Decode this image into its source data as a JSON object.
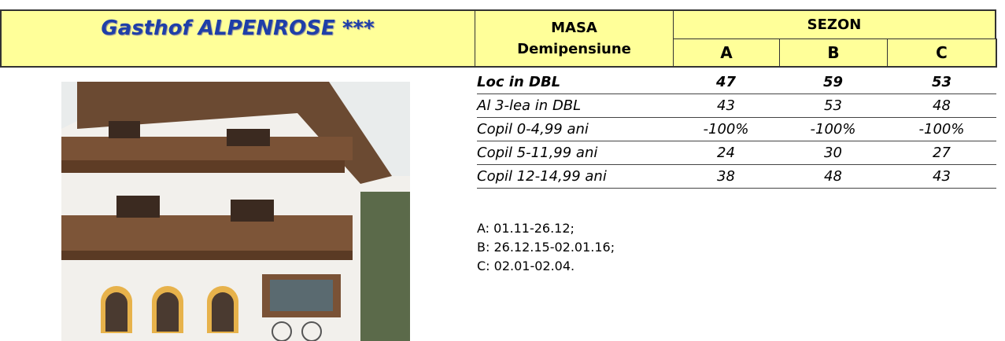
{
  "header": {
    "title": "Gasthof ALPENROSE ***",
    "meal_label": "MASA",
    "meal_type": "Demipensiune",
    "season_label": "SEZON",
    "seasons": [
      "A",
      "B",
      "C"
    ]
  },
  "table": {
    "rows": [
      [
        "Loc in DBL",
        "47",
        "59",
        "53"
      ],
      [
        "Al 3-lea in DBL",
        "43",
        "53",
        "48"
      ],
      [
        "Copil 0-4,99 ani",
        "-100%",
        "-100%",
        "-100%"
      ],
      [
        "Copil 5-11,99 ani",
        "24",
        "30",
        "27"
      ],
      [
        "Copil 12-14,99 ani",
        "38",
        "48",
        "43"
      ]
    ]
  },
  "notes": [
    "A: 01.11-26.12;",
    "B: 26.12.15-02.01.16;",
    "C: 02.01-02.04."
  ]
}
